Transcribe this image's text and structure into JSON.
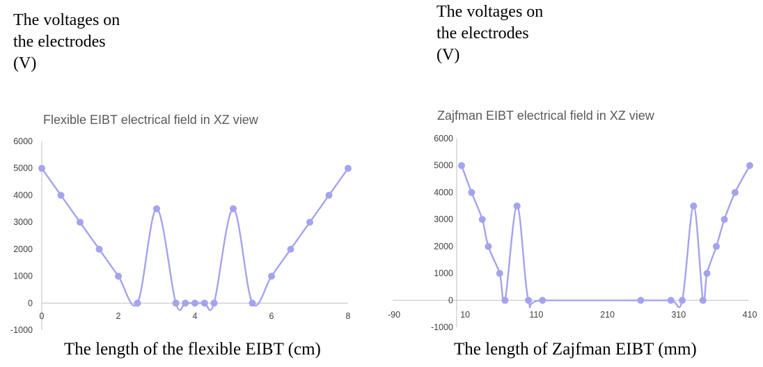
{
  "left_panel": {
    "ylabel_lines": [
      "The voltages on",
      "the electrodes",
      "(V)"
    ],
    "xlabel": "The length of the flexible EIBT (cm)"
  },
  "right_panel": {
    "ylabel_lines": [
      "The voltages on",
      "the electrodes",
      "(V)"
    ],
    "xlabel": "The length of Zajfman EIBT (mm)"
  },
  "colors": {
    "series": "#a3a3ee",
    "axis": "#bfbfbf",
    "text": "#595959"
  },
  "chart_data": [
    {
      "type": "scatter",
      "line": "smooth",
      "title": "Flexible EIBT electrical field in XZ view",
      "xlim": [
        0,
        8
      ],
      "ylim": [
        -1000,
        6000
      ],
      "x_ticks": [
        0,
        2,
        4,
        6,
        8
      ],
      "y_ticks": [
        -1000,
        0,
        1000,
        2000,
        3000,
        4000,
        5000,
        6000
      ],
      "x": [
        0,
        0.5,
        1,
        1.5,
        2,
        2.5,
        3,
        3.5,
        3.75,
        4,
        4.25,
        4.5,
        5,
        5.5,
        6,
        6.5,
        7,
        7.5,
        8
      ],
      "y": [
        5000,
        4000,
        3000,
        2000,
        1000,
        0,
        3500,
        0,
        0,
        0,
        0,
        0,
        3500,
        0,
        1000,
        2000,
        3000,
        4000,
        5000
      ]
    },
    {
      "type": "scatter",
      "line": "smooth",
      "title": "Zajfman EIBT electrical field in XZ view",
      "xlim": [
        -90,
        410
      ],
      "ylim": [
        -1000,
        6000
      ],
      "x_ticks": [
        -90,
        10,
        110,
        210,
        310,
        410
      ],
      "y_ticks": [
        -1000,
        0,
        1000,
        2000,
        3000,
        4000,
        5000,
        6000
      ],
      "x": [
        0,
        15,
        31,
        40,
        57,
        65,
        83,
        100,
        121,
        268,
        313,
        330,
        347,
        361,
        367,
        381,
        393,
        409,
        431
      ],
      "y": [
        5000,
        4000,
        3000,
        2000,
        1000,
        0,
        3500,
        0,
        0,
        0,
        0,
        0,
        3500,
        0,
        1000,
        2000,
        3000,
        4000,
        5000
      ]
    }
  ]
}
